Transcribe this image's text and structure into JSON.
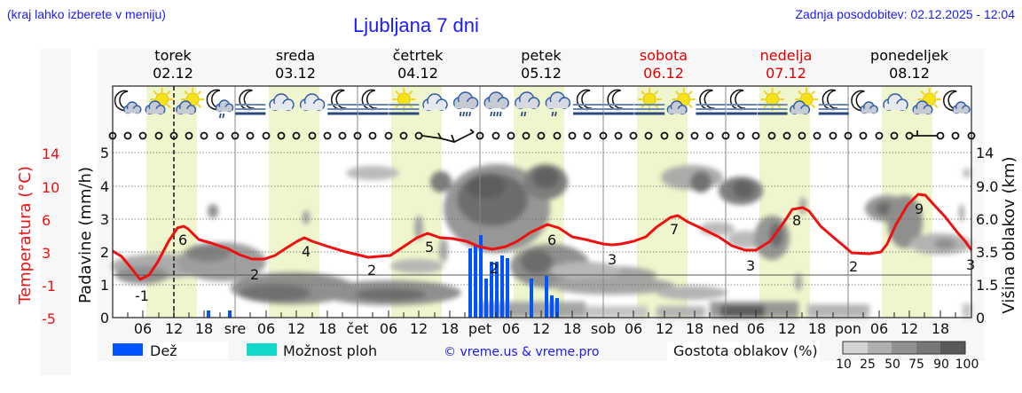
{
  "header": {
    "region_hint": "(kraj lahko izberete v meniju)",
    "title": "Ljubljana 7 dni",
    "last_update": "Zadnja posodobitev: 02.12.2025 - 12:04"
  },
  "days": [
    {
      "name": "torek",
      "date": "02.12",
      "weekend": false
    },
    {
      "name": "sreda",
      "date": "03.12",
      "weekend": false
    },
    {
      "name": "četrtek",
      "date": "04.12",
      "weekend": false
    },
    {
      "name": "petek",
      "date": "05.12",
      "weekend": false
    },
    {
      "name": "sobota",
      "date": "06.12",
      "weekend": true
    },
    {
      "name": "nedelja",
      "date": "07.12",
      "weekend": true
    },
    {
      "name": "ponedeljek",
      "date": "08.12",
      "weekend": false
    }
  ],
  "axes": {
    "left_outer_label": "Temperatura (°C)",
    "left_outer_ticks": [
      "14",
      "10",
      "6",
      "3",
      "-1",
      "-5"
    ],
    "left_inner_label": "Padavine (mm/h)",
    "left_inner_ticks": [
      "5",
      "4",
      "3",
      "2",
      "1",
      "0"
    ],
    "right_label": "Višina oblakov (km)",
    "right_ticks": [
      "14",
      "9.0",
      "6.0",
      "3.5",
      "1.5",
      "0"
    ],
    "x_ticks": [
      "06",
      "12",
      "18",
      "sre",
      "06",
      "12",
      "18",
      "čet",
      "06",
      "12",
      "18",
      "pet",
      "06",
      "12",
      "18",
      "sob",
      "06",
      "12",
      "18",
      "ned",
      "06",
      "12",
      "18",
      "pon",
      "06",
      "12",
      "18"
    ]
  },
  "legend": {
    "rain_label": "Dež",
    "rain_color": "#0055ff",
    "showers_label": "Možnost ploh",
    "showers_color": "#11d8c8",
    "copyright": "© vreme.us & vreme.pro",
    "cloud_density_label": "Gostota oblakov (%)",
    "cloud_density_ticks": [
      "10",
      "25",
      "50",
      "75",
      "90",
      "100"
    ],
    "cloud_density_colors": [
      "#d4d4d4",
      "#b0b0b0",
      "#929292",
      "#777777",
      "#5a5a5a"
    ]
  },
  "colors": {
    "temperature_line": "#ee1111",
    "daylight_band": "#eff5cc",
    "weekend_text": "#dd0000",
    "title_blue": "#1a1aff"
  },
  "weather_icons": [
    "moon-cloud-icon",
    "sun-cloud-icon",
    "sun-cloud-icon",
    "moon-cloud-rain-icon",
    "moon-fog-icon",
    "cloud-icon",
    "cloud-icon",
    "moon-fog-icon",
    "moon-fog-icon",
    "sun-fog-icon",
    "cloud-icon",
    "cloud-rain-icon",
    "cloud-rain-icon",
    "cloud-drizzle-icon",
    "cloud-drizzle-icon",
    "moon-fog-icon",
    "moon-fog-icon",
    "sun-fog-icon",
    "sun-cloud-icon",
    "moon-fog-icon",
    "moon-fog-icon",
    "sun-fog-icon",
    "sun-cloud-icon",
    "moon-fog-icon",
    "moon-cloud-icon",
    "cloud-icon",
    "sun-cloud-icon",
    "moon-cloud-icon"
  ],
  "chart_data": {
    "type": "line",
    "title": "Ljubljana 7 dni",
    "xlabel": "",
    "ylabel": "Padavine (mm/h)",
    "ylim": [
      0,
      5
    ],
    "grid": true,
    "x": [
      "02.12 00",
      "02.12 06",
      "02.12 12",
      "02.12 18",
      "03.12 00",
      "03.12 06",
      "03.12 12",
      "03.12 18",
      "04.12 00",
      "04.12 06",
      "04.12 12",
      "04.12 18",
      "05.12 00",
      "05.12 06",
      "05.12 12",
      "05.12 18",
      "06.12 00",
      "06.12 06",
      "06.12 12",
      "06.12 18",
      "07.12 00",
      "07.12 06",
      "07.12 12",
      "07.12 18",
      "08.12 00",
      "08.12 06",
      "08.12 12",
      "08.12 18"
    ],
    "series": [
      {
        "name": "Temperatura (°C)",
        "type": "line",
        "color": "#ee1111",
        "values": [
          1,
          -1,
          6,
          4,
          3,
          2,
          4,
          3,
          2,
          2,
          5,
          4,
          3,
          3,
          6,
          4,
          3,
          3,
          7,
          5,
          3,
          3,
          8,
          4,
          2,
          2,
          9,
          5
        ],
        "point_labels": [
          {
            "at": "02.12 06",
            "value": -1
          },
          {
            "at": "02.12 12",
            "value": 6
          },
          {
            "at": "03.12 03",
            "value": 2
          },
          {
            "at": "03.12 13",
            "value": 4
          },
          {
            "at": "04.12 00",
            "value": 2
          },
          {
            "at": "04.12 12",
            "value": 5
          },
          {
            "at": "05.12 01",
            "value": 2
          },
          {
            "at": "05.12 14",
            "value": 6
          },
          {
            "at": "06.12 00",
            "value": 3
          },
          {
            "at": "06.12 14",
            "value": 7
          },
          {
            "at": "07.12 06",
            "value": 3
          },
          {
            "at": "07.12 14",
            "value": 8
          },
          {
            "at": "08.12 03",
            "value": 2
          },
          {
            "at": "08.12 14",
            "value": 9
          },
          {
            "at": "08.12 24",
            "value": 3
          }
        ]
      },
      {
        "name": "Dež (mm/h)",
        "type": "bar",
        "color": "#0055ff",
        "points": [
          {
            "at": "02.12 19",
            "value": 0.2
          },
          {
            "at": "02.12 23",
            "value": 0.2
          },
          {
            "at": "04.12 22",
            "value": 2.1
          },
          {
            "at": "04.12 23",
            "value": 2.2
          },
          {
            "at": "05.12 00",
            "value": 2.5
          },
          {
            "at": "05.12 01",
            "value": 1.2
          },
          {
            "at": "05.12 02",
            "value": 1.7
          },
          {
            "at": "05.12 03",
            "value": 1.7
          },
          {
            "at": "05.12 04",
            "value": 1.9
          },
          {
            "at": "05.12 05",
            "value": 1.8
          },
          {
            "at": "05.12 09",
            "value": 1.2
          },
          {
            "at": "05.12 12",
            "value": 1.3
          },
          {
            "at": "05.12 13",
            "value": 0.7
          },
          {
            "at": "05.12 14",
            "value": 0.6
          }
        ]
      }
    ],
    "temperature_axis": {
      "label": "Temperatura (°C)",
      "ticks": [
        14,
        10,
        6,
        3,
        -1,
        -5
      ]
    },
    "cloud_height_axis": {
      "label": "Višina oblakov (km)",
      "ticks": [
        14,
        9.0,
        6.0,
        3.5,
        1.5,
        0
      ]
    },
    "cloud_density_scale": {
      "label": "Gostota oblakov (%)",
      "ticks": [
        10,
        25,
        50,
        75,
        90,
        100
      ]
    },
    "now_marker": "02.12 12:00",
    "legend": [
      "Dež",
      "Možnost ploh",
      "Gostota oblakov (%)"
    ],
    "legend_position": "bottom"
  }
}
